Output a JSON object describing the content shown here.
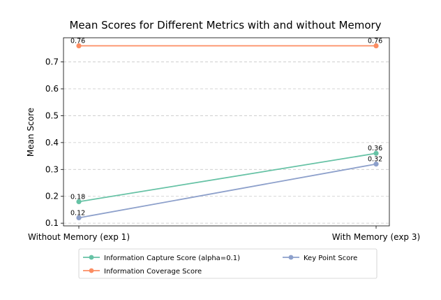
{
  "chart_data": {
    "type": "line",
    "title": "Mean Scores for Different Metrics with and without Memory",
    "xlabel": "",
    "ylabel": "Mean Score",
    "categories": [
      "Without Memory (exp 1)",
      "With Memory (exp 3)"
    ],
    "ylim": [
      0.09,
      0.79
    ],
    "yticks": [
      "0.1",
      "0.2",
      "0.3",
      "0.4",
      "0.5",
      "0.6",
      "0.7"
    ],
    "grid": "horizontal dashed",
    "legend_position": "below",
    "series": [
      {
        "name": "Information Capture Score (alpha=0.1)",
        "values": [
          0.18,
          0.36
        ],
        "labels": [
          "0.18",
          "0.36"
        ],
        "color": "#66c2a5"
      },
      {
        "name": "Information Coverage Score",
        "values": [
          0.76,
          0.76
        ],
        "labels": [
          "0.76",
          "0.76"
        ],
        "color": "#fc8d62"
      },
      {
        "name": "Key Point Score",
        "values": [
          0.12,
          0.32
        ],
        "labels": [
          "0.12",
          "0.32"
        ],
        "color": "#8da0cb"
      }
    ]
  }
}
